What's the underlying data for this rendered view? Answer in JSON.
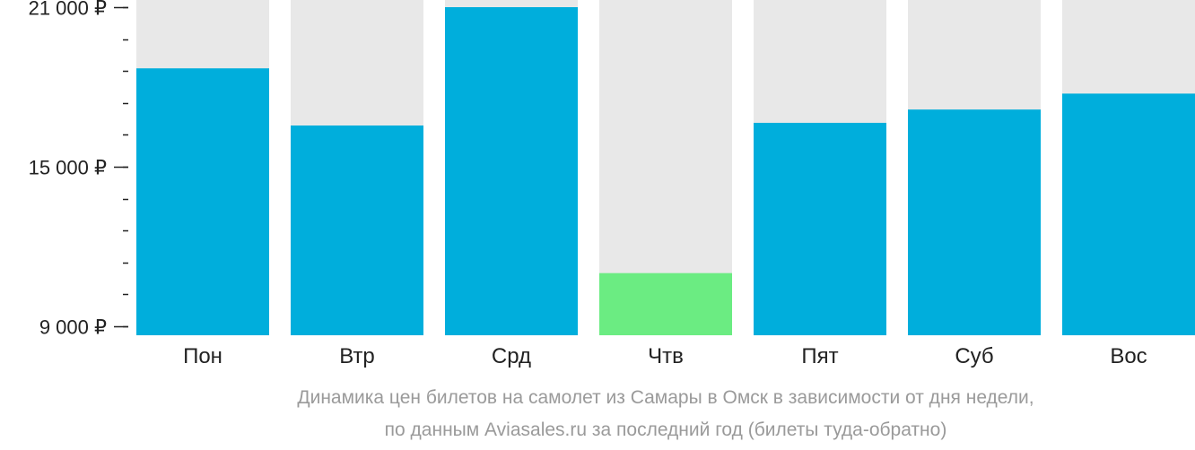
{
  "chart_data": {
    "type": "bar",
    "categories": [
      "Пон",
      "Втр",
      "Срд",
      "Чтв",
      "Пят",
      "Суб",
      "Вос"
    ],
    "values": [
      18700,
      16550,
      21000,
      11000,
      16650,
      17150,
      17750
    ],
    "highlight_index": 3,
    "ylim": [
      9000,
      21000
    ],
    "yticks": [
      {
        "value": 21000,
        "label": "21 000 ₽"
      },
      {
        "value": 15000,
        "label": "15 000 ₽"
      },
      {
        "value": 9000,
        "label": "9 000 ₽"
      }
    ],
    "minor_tick_step": 1200,
    "colors": {
      "bar": "#00AEDC",
      "highlight": "#6BEC82",
      "track": "#E8E8E8",
      "axis": "#222222"
    },
    "caption": [
      "Динамика цен билетов на самолет из Самары в Омск в зависимости от дня недели,",
      "по данным Aviasales.ru за последний год (билеты туда-обратно)"
    ]
  }
}
